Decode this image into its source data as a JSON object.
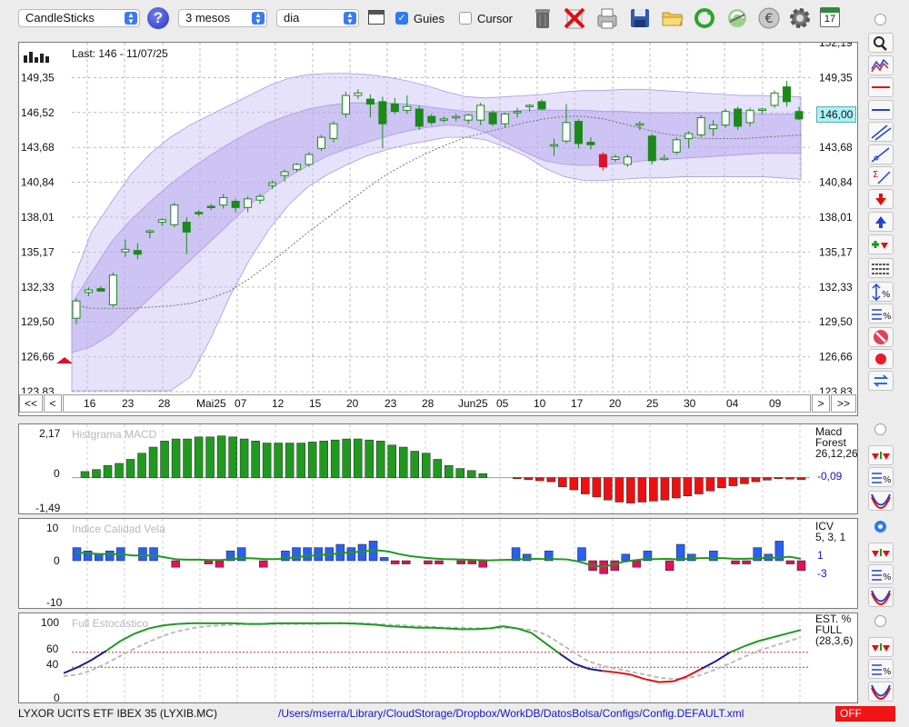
{
  "toolbar": {
    "chart_type": "CandleSticks",
    "help_icon": "?",
    "period": "3 mesos",
    "interval": "dia",
    "guies_label": "Guies",
    "guies_checked": true,
    "cursor_label": "Cursor",
    "cursor_checked": false,
    "icons": [
      "window-icon",
      "trash-icon",
      "delete-icon",
      "print-icon",
      "save-icon",
      "folder-icon",
      "refresh-icon",
      "update-icon",
      "euro-icon",
      "gear-icon",
      "calendar-icon"
    ],
    "calendar_day": "17"
  },
  "main_chart": {
    "last_label": "Last: 146 - 11/07/25",
    "current_price": "146,00",
    "y_labels": [
      "152,19",
      "149,35",
      "146,52",
      "143,68",
      "140,84",
      "138,01",
      "135,17",
      "132,33",
      "129,50",
      "126,66",
      "123,83"
    ],
    "x_labels": [
      "16",
      "23",
      "28",
      "Mai25",
      "07",
      "12",
      "15",
      "20",
      "23",
      "28",
      "Jun25",
      "05",
      "10",
      "17",
      "20",
      "25",
      "30",
      "04",
      "09"
    ],
    "nav": {
      "first": "<<",
      "prev": "<",
      "next": ">",
      "last": ">>"
    }
  },
  "chart_data": [
    {
      "type": "candlestick",
      "title": "",
      "ylim": [
        123.83,
        152.19
      ],
      "y_ticks": [
        149.35,
        146.52,
        143.68,
        140.84,
        138.01,
        135.17,
        132.33,
        129.5,
        126.66,
        123.83
      ],
      "x_tick_labels": [
        "16",
        "23",
        "28",
        "Mai25",
        "07",
        "12",
        "15",
        "20",
        "23",
        "28",
        "Jun25",
        "05",
        "10",
        "17",
        "20",
        "25",
        "30",
        "04",
        "09"
      ],
      "candles": [
        {
          "o": 129.8,
          "h": 131.4,
          "l": 129.3,
          "c": 131.2
        },
        {
          "o": 131.9,
          "h": 132.3,
          "l": 131.6,
          "c": 132.1
        },
        {
          "o": 132.2,
          "h": 132.4,
          "l": 132.0,
          "c": 132.0
        },
        {
          "o": 130.9,
          "h": 133.5,
          "l": 130.7,
          "c": 133.3
        },
        {
          "o": 135.2,
          "h": 136.2,
          "l": 134.8,
          "c": 135.4
        },
        {
          "o": 135.3,
          "h": 135.9,
          "l": 134.6,
          "c": 135.0
        },
        {
          "o": 136.8,
          "h": 137.0,
          "l": 136.3,
          "c": 136.9
        },
        {
          "o": 137.6,
          "h": 137.9,
          "l": 137.3,
          "c": 137.8
        },
        {
          "o": 137.4,
          "h": 139.2,
          "l": 137.2,
          "c": 139.0
        },
        {
          "o": 137.6,
          "h": 138.0,
          "l": 135.0,
          "c": 136.8
        },
        {
          "o": 138.4,
          "h": 138.6,
          "l": 138.1,
          "c": 138.3
        },
        {
          "o": 138.9,
          "h": 139.1,
          "l": 138.6,
          "c": 138.8
        },
        {
          "o": 139.0,
          "h": 139.9,
          "l": 138.7,
          "c": 139.6
        },
        {
          "o": 139.3,
          "h": 139.5,
          "l": 138.4,
          "c": 138.8
        },
        {
          "o": 138.8,
          "h": 139.7,
          "l": 138.4,
          "c": 139.5
        },
        {
          "o": 139.4,
          "h": 139.9,
          "l": 139.1,
          "c": 139.7
        },
        {
          "o": 140.6,
          "h": 141.0,
          "l": 140.3,
          "c": 140.8
        },
        {
          "o": 141.4,
          "h": 141.9,
          "l": 140.9,
          "c": 141.7
        },
        {
          "o": 141.9,
          "h": 142.4,
          "l": 141.7,
          "c": 142.3
        },
        {
          "o": 142.3,
          "h": 143.3,
          "l": 142.1,
          "c": 143.1
        },
        {
          "o": 143.6,
          "h": 144.7,
          "l": 143.4,
          "c": 144.5
        },
        {
          "o": 144.4,
          "h": 145.8,
          "l": 144.1,
          "c": 145.6
        },
        {
          "o": 146.4,
          "h": 148.2,
          "l": 146.1,
          "c": 147.9
        },
        {
          "o": 147.9,
          "h": 148.4,
          "l": 147.6,
          "c": 148.1
        },
        {
          "o": 147.6,
          "h": 148.0,
          "l": 146.1,
          "c": 147.2
        },
        {
          "o": 147.4,
          "h": 147.8,
          "l": 143.6,
          "c": 145.6
        },
        {
          "o": 147.2,
          "h": 147.7,
          "l": 146.4,
          "c": 146.6
        },
        {
          "o": 146.7,
          "h": 147.9,
          "l": 146.4,
          "c": 147.0
        },
        {
          "o": 146.8,
          "h": 147.1,
          "l": 145.1,
          "c": 145.4
        },
        {
          "o": 146.2,
          "h": 146.4,
          "l": 145.5,
          "c": 145.7
        },
        {
          "o": 146.0,
          "h": 146.2,
          "l": 145.7,
          "c": 146.0
        },
        {
          "o": 146.1,
          "h": 146.4,
          "l": 145.8,
          "c": 146.2
        },
        {
          "o": 145.9,
          "h": 146.4,
          "l": 145.6,
          "c": 146.3
        },
        {
          "o": 145.9,
          "h": 147.3,
          "l": 145.5,
          "c": 147.1
        },
        {
          "o": 146.5,
          "h": 146.7,
          "l": 145.4,
          "c": 145.6
        },
        {
          "o": 145.6,
          "h": 146.5,
          "l": 145.3,
          "c": 146.4
        },
        {
          "o": 146.5,
          "h": 146.9,
          "l": 146.1,
          "c": 146.6
        },
        {
          "o": 147.0,
          "h": 147.2,
          "l": 146.6,
          "c": 147.1
        },
        {
          "o": 147.4,
          "h": 147.6,
          "l": 146.7,
          "c": 146.8
        },
        {
          "o": 143.8,
          "h": 144.4,
          "l": 143.0,
          "c": 143.9
        },
        {
          "o": 144.2,
          "h": 147.2,
          "l": 144.0,
          "c": 145.7
        },
        {
          "o": 145.8,
          "h": 146.0,
          "l": 143.6,
          "c": 144.0
        },
        {
          "o": 144.1,
          "h": 144.5,
          "l": 143.5,
          "c": 143.9
        },
        {
          "o": 143.1,
          "h": 143.3,
          "l": 141.8,
          "c": 142.1
        },
        {
          "o": 142.7,
          "h": 143.1,
          "l": 142.5,
          "c": 142.9
        },
        {
          "o": 142.3,
          "h": 143.1,
          "l": 142.1,
          "c": 142.9
        },
        {
          "o": 145.5,
          "h": 145.8,
          "l": 145.1,
          "c": 145.6
        },
        {
          "o": 144.6,
          "h": 144.8,
          "l": 142.3,
          "c": 142.6
        },
        {
          "o": 142.8,
          "h": 143.1,
          "l": 142.6,
          "c": 142.8
        },
        {
          "o": 143.3,
          "h": 144.5,
          "l": 143.1,
          "c": 144.3
        },
        {
          "o": 144.4,
          "h": 145.0,
          "l": 143.6,
          "c": 144.8
        },
        {
          "o": 144.7,
          "h": 146.3,
          "l": 144.5,
          "c": 146.1
        },
        {
          "o": 145.2,
          "h": 145.9,
          "l": 144.6,
          "c": 145.5
        },
        {
          "o": 145.5,
          "h": 146.8,
          "l": 145.3,
          "c": 146.6
        },
        {
          "o": 146.8,
          "h": 147.0,
          "l": 145.1,
          "c": 145.4
        },
        {
          "o": 145.7,
          "h": 146.9,
          "l": 145.4,
          "c": 146.7
        },
        {
          "o": 146.7,
          "h": 146.9,
          "l": 146.4,
          "c": 146.8
        },
        {
          "o": 147.1,
          "h": 148.3,
          "l": 146.9,
          "c": 148.1
        },
        {
          "o": 148.6,
          "h": 149.1,
          "l": 147.0,
          "c": 147.4
        },
        {
          "o": 146.6,
          "h": 147.0,
          "l": 145.9,
          "c": 146.0
        }
      ],
      "bands_outer_upper": [
        132.6,
        136.8,
        139.2,
        141.5,
        143.2,
        144.5,
        145.5,
        146.3,
        147.1,
        147.9,
        148.7,
        149.3,
        149.6,
        149.7,
        149.7,
        149.6,
        149.4,
        149.1,
        148.7,
        148.2,
        147.8,
        147.7,
        147.8,
        147.9,
        148.0,
        148.2,
        148.3,
        148.3,
        148.4,
        148.4,
        148.3,
        148.2,
        148.1,
        148.0,
        147.9,
        147.9,
        147.8,
        147.8
      ],
      "bands_outer_lower": [
        123.9,
        123.9,
        123.9,
        123.9,
        123.9,
        123.9,
        125.0,
        128.0,
        131.5,
        134.5,
        137.0,
        139.0,
        140.5,
        141.5,
        142.3,
        143.0,
        143.5,
        143.9,
        144.2,
        144.5,
        144.5,
        144.3,
        143.7,
        143.0,
        142.0,
        141.3,
        141.0,
        141.0,
        141.1,
        141.2,
        141.2,
        141.3,
        141.3,
        141.3,
        141.3,
        141.3,
        141.2,
        141.1
      ],
      "bands_inner_upper": [
        131.0,
        133.5,
        136.0,
        137.8,
        139.3,
        140.7,
        141.9,
        143.0,
        144.0,
        144.9,
        145.7,
        146.3,
        146.8,
        147.1,
        147.3,
        147.3,
        147.3,
        147.2,
        147.0,
        146.8,
        146.6,
        146.6,
        146.6,
        146.7,
        146.7,
        146.7,
        146.7,
        146.6,
        146.6,
        146.5,
        146.5,
        146.5,
        146.5,
        146.5,
        146.5,
        146.4,
        146.4,
        146.4
      ],
      "bands_inner_lower": [
        127.0,
        127.5,
        128.5,
        130.0,
        131.5,
        133.0,
        134.5,
        136.0,
        137.5,
        139.0,
        140.2,
        141.3,
        142.2,
        143.0,
        143.6,
        144.1,
        144.6,
        145.0,
        145.3,
        145.5,
        145.4,
        144.9,
        144.1,
        143.3,
        142.6,
        142.3,
        142.2,
        142.3,
        142.4,
        142.6,
        142.7,
        142.8,
        142.9,
        143.0,
        143.1,
        143.2,
        143.2,
        143.2
      ],
      "ma_line": [
        130.9,
        130.6,
        130.6,
        130.6,
        130.7,
        130.8,
        131.0,
        131.4,
        132.0,
        133.0,
        134.2,
        135.5,
        136.8,
        138.0,
        139.2,
        140.4,
        141.5,
        142.4,
        143.2,
        143.9,
        144.5,
        144.9,
        145.3,
        145.7,
        146.0,
        146.2,
        146.2,
        146.0,
        145.6,
        145.2,
        144.8,
        144.6,
        144.4,
        144.4,
        144.4,
        144.5,
        144.6,
        144.7
      ]
    },
    {
      "type": "bar",
      "title": "Histgrama MACD",
      "y_labels": [
        "2,17",
        "0",
        "-1,49"
      ],
      "ylim": [
        -1.49,
        2.17
      ],
      "legend": [
        "Macd",
        "Forest",
        "26,12,26"
      ],
      "current_value": "-0,09",
      "values": [
        0.3,
        0.4,
        0.6,
        0.7,
        0.9,
        1.2,
        1.5,
        1.8,
        1.9,
        1.9,
        2.0,
        2.0,
        2.05,
        2.0,
        1.9,
        1.8,
        1.7,
        1.7,
        1.7,
        1.7,
        1.75,
        1.8,
        1.85,
        1.9,
        1.9,
        1.85,
        1.8,
        1.6,
        1.5,
        1.3,
        1.2,
        0.9,
        0.6,
        0.45,
        0.35,
        0.2,
        0.0,
        0.0,
        -0.05,
        -0.1,
        -0.15,
        -0.2,
        -0.45,
        -0.6,
        -0.8,
        -0.95,
        -1.1,
        -1.2,
        -1.25,
        -1.2,
        -1.15,
        -1.1,
        -1.0,
        -0.9,
        -0.8,
        -0.65,
        -0.5,
        -0.4,
        -0.3,
        -0.2,
        -0.12,
        -0.05,
        -0.07,
        -0.09
      ]
    },
    {
      "type": "bar",
      "title": "Indice Calidad Vela",
      "y_labels": [
        "10",
        "0",
        "-10"
      ],
      "ylim": [
        -10,
        10
      ],
      "legend": [
        "ICV",
        "5, 3, 1"
      ],
      "current_values": [
        "1",
        "-3"
      ],
      "values": [
        4,
        3,
        2,
        3,
        4,
        0,
        4,
        4,
        0,
        -2,
        0,
        0,
        -1,
        -2,
        3,
        4,
        0,
        -2,
        0,
        3,
        4,
        4,
        4,
        4,
        5,
        4,
        5,
        6,
        1,
        -1,
        -1,
        0,
        -1,
        -1,
        0,
        -1,
        -1,
        -2,
        0,
        0,
        4,
        2,
        0,
        3,
        0,
        0,
        4,
        -3,
        -4,
        -3,
        2,
        -2,
        3,
        0,
        -3,
        5,
        2,
        0,
        3,
        0,
        -1,
        -1,
        4,
        2,
        6,
        -1,
        -3
      ],
      "line": [
        2.5,
        2.3,
        2.1,
        2.0,
        2.0,
        1.6,
        1.6,
        1.6,
        1.0,
        0.4,
        0.3,
        0.3,
        0.2,
        0.2,
        0.5,
        0.8,
        0.7,
        0.5,
        0.5,
        0.8,
        1.2,
        1.5,
        1.8,
        2.0,
        2.4,
        2.6,
        3.0,
        3.2,
        2.8,
        2.0,
        1.4,
        1.0,
        0.7,
        0.5,
        0.4,
        0.3,
        0.2,
        0.1,
        0.2,
        0.3,
        0.5,
        0.6,
        0.5,
        0.5,
        0.4,
        -0.2,
        -1.2,
        -1.8,
        -1.4,
        -0.4,
        0.1,
        0.5,
        0.5,
        0.6,
        0.4,
        0.6,
        0.8,
        0.8,
        0.8,
        0.6,
        0.6,
        0.7,
        0.9,
        0.9,
        1.2,
        0.6
      ]
    },
    {
      "type": "line",
      "title": "Full Estocástico",
      "y_labels": [
        "100",
        "60",
        "40",
        "0"
      ],
      "ylim": [
        0,
        110
      ],
      "legend": [
        "EST. %",
        "FULL",
        "(28,3,6)"
      ],
      "k_line": [
        32,
        40,
        50,
        62,
        75,
        85,
        92,
        96,
        98,
        99,
        99,
        99,
        99,
        98,
        98,
        99,
        99,
        99,
        99,
        99,
        99,
        98,
        97,
        95,
        94,
        93,
        93,
        92,
        91,
        91,
        92,
        95,
        92,
        86,
        72,
        58,
        45,
        38,
        35,
        33,
        30,
        24,
        20,
        21,
        28,
        38,
        48,
        60,
        68,
        75,
        80,
        85,
        90
      ],
      "d_line": [
        28,
        30,
        36,
        45,
        55,
        65,
        74,
        82,
        88,
        92,
        95,
        96,
        97,
        98,
        98,
        98,
        98,
        98,
        98,
        99,
        99,
        99,
        98,
        97,
        96,
        95,
        94,
        93,
        93,
        92,
        92,
        93,
        92,
        90,
        84,
        72,
        60,
        48,
        42,
        38,
        34,
        30,
        26,
        24,
        25,
        30,
        37,
        45,
        54,
        62,
        68,
        74,
        80
      ]
    }
  ],
  "right_panel": {
    "buttons": [
      "zoom-icon",
      "bands-icon",
      "horizontal-line-red-icon",
      "horizontal-line-blue-icon",
      "trend-channel-icon",
      "trend-line-icon",
      "fibonacci-icon",
      "arrow-down-icon",
      "arrow-up-icon",
      "add-signal-icon",
      "grid-lines-icon",
      "percent-range-icon",
      "percent-levels-icon",
      "stop-icon",
      "record-icon",
      "swap-icon"
    ]
  },
  "status": {
    "ticker": "LYXOR UCITS ETF IBEX 35 (LYXIB.MC)",
    "path": "/Users/mserra/Library/CloudStorage/Dropbox/WorkDB/DatosBolsa/Configs/Config.DEFAULT.xml",
    "off_label": "OFF"
  }
}
